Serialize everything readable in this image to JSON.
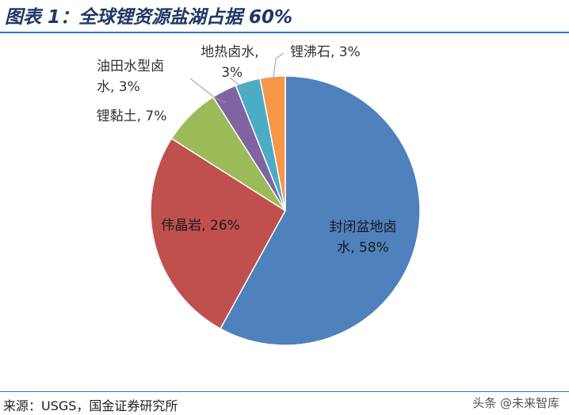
{
  "header": {
    "title": "图表 1：全球锂资源盐湖占据 60%"
  },
  "footer": {
    "source": "来源：USGS，国金证券研究所"
  },
  "watermark": {
    "text": "头条 @未来智库"
  },
  "chart_data": {
    "type": "pie",
    "title": "",
    "series": [
      {
        "label": "封闭盆地卤水, 58%",
        "value": 58,
        "color": "#4f81bd"
      },
      {
        "label": "伟晶岩, 26%",
        "value": 26,
        "color": "#c0504d"
      },
      {
        "label": "锂黏土, 7%",
        "value": 7,
        "color": "#9bbb59"
      },
      {
        "label": "油田水型卤水, 3%",
        "value": 3,
        "color": "#8064a2"
      },
      {
        "label": "地热卤水, 3%",
        "value": 3,
        "color": "#4bacc6"
      },
      {
        "label": "锂沸石, 3%",
        "value": 3,
        "color": "#f79646"
      }
    ],
    "legend": "none",
    "start_angle": "12 o'clock, clockwise"
  }
}
